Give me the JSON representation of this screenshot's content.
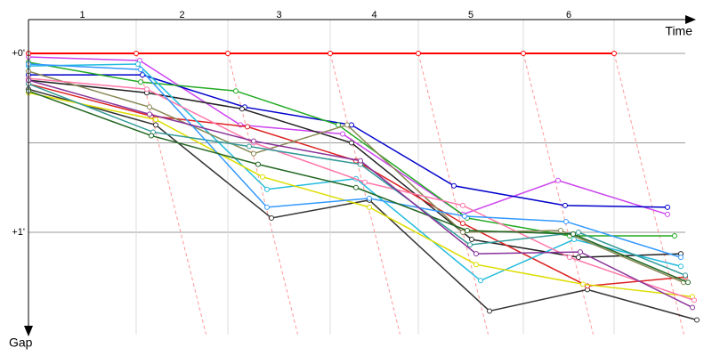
{
  "chart_data": {
    "type": "line",
    "x_label": "Time",
    "y_label": "Gap",
    "categories": [
      "1",
      "2",
      "3",
      "4",
      "5",
      "6"
    ],
    "lap_times": [
      2.42,
      4.48,
      6.78,
      8.76,
      11.12,
      13.16
    ],
    "xlim": [
      0,
      15.3
    ],
    "ylim": [
      0,
      1.57
    ],
    "yticks": [
      {
        "value": 0,
        "label": "+0'"
      },
      {
        "value": 0.5,
        "label": null
      },
      {
        "value": 1,
        "label": "+1'"
      }
    ],
    "grid": true,
    "series": [
      {
        "color": "#cc44ee",
        "x": [
          0,
          2.5,
          4.76,
          7.06,
          9.76,
          11.9,
          14.36
        ],
        "values": [
          0.02,
          0.04,
          0.4,
          0.45,
          0.9,
          0.71,
          0.9
        ]
      },
      {
        "color": "#0000cc",
        "x": [
          0,
          2.56,
          4.86,
          7.26,
          9.56,
          12.06,
          14.36
        ],
        "values": [
          0.12,
          0.12,
          0.3,
          0.4,
          0.74,
          0.85,
          0.86
        ]
      },
      {
        "color": "#222222",
        "x": [
          0,
          2.66,
          4.8,
          7.26,
          9.96,
          12.36,
          14.66
        ],
        "values": [
          0.15,
          0.22,
          0.31,
          0.5,
          1.04,
          1.14,
          1.12
        ]
      },
      {
        "color": "#333333",
        "x": [
          0,
          2.86,
          5.46,
          7.66,
          10.36,
          12.56,
          15.02
        ],
        "values": [
          0.2,
          0.4,
          0.92,
          0.82,
          1.44,
          1.32,
          1.49
        ]
      },
      {
        "color": "#dd2222",
        "x": [
          0,
          2.76,
          4.92,
          7.36,
          9.76,
          12.56,
          14.76
        ],
        "values": [
          0.17,
          0.35,
          0.41,
          0.6,
          0.95,
          1.3,
          1.25
        ]
      },
      {
        "color": "#22aa22",
        "x": [
          0,
          2.52,
          4.66,
          6.96,
          9.86,
          12.16,
          14.52
        ],
        "values": [
          0.05,
          0.16,
          0.21,
          0.4,
          0.92,
          1.02,
          1.02
        ]
      },
      {
        "color": "#22bbdd",
        "x": [
          0,
          2.46,
          5.36,
          7.36,
          10.16,
          12.26,
          14.66
        ],
        "values": [
          0.07,
          0.06,
          0.76,
          0.7,
          1.27,
          1.04,
          1.19
        ]
      },
      {
        "color": "#dddd00",
        "x": [
          0,
          2.86,
          5.26,
          7.66,
          10.06,
          12.46,
          14.92
        ],
        "values": [
          0.22,
          0.37,
          0.69,
          0.86,
          1.18,
          1.29,
          1.36
        ]
      },
      {
        "color": "#888855",
        "x": [
          0,
          2.72,
          5.06,
          7.16,
          9.76,
          11.96,
          14.72
        ],
        "values": [
          0.1,
          0.3,
          0.56,
          0.4,
          1.0,
          0.99,
          1.28
        ]
      },
      {
        "color": "#ff77aa",
        "x": [
          0,
          2.66,
          5.06,
          7.56,
          9.76,
          12.16,
          14.96
        ],
        "values": [
          0.14,
          0.2,
          0.5,
          0.72,
          0.85,
          1.14,
          1.38
        ]
      },
      {
        "color": "#339999",
        "x": [
          0,
          2.8,
          4.96,
          7.46,
          9.92,
          12.36,
          14.76
        ],
        "values": [
          0.17,
          0.44,
          0.52,
          0.62,
          1.07,
          1.0,
          1.24
        ]
      },
      {
        "color": "#3399ff",
        "x": [
          0,
          2.52,
          5.36,
          7.66,
          9.8,
          12.08,
          14.66
        ],
        "values": [
          0.06,
          0.09,
          0.86,
          0.81,
          0.91,
          0.94,
          1.14
        ]
      },
      {
        "color": "#226622",
        "x": [
          0,
          2.76,
          5.16,
          7.36,
          9.86,
          12.24,
          14.82
        ],
        "values": [
          0.21,
          0.46,
          0.62,
          0.75,
          0.99,
          1.01,
          1.28
        ]
      },
      {
        "color": "#883399",
        "x": [
          0,
          2.72,
          5.06,
          7.46,
          10.06,
          12.4,
          14.92
        ],
        "values": [
          0.15,
          0.34,
          0.49,
          0.6,
          1.12,
          1.11,
          1.42
        ]
      },
      {
        "color": "#ff0000",
        "x": [
          0,
          2.42,
          4.48,
          6.78,
          8.76,
          11.12,
          13.16
        ],
        "values": [
          0,
          0,
          0,
          0,
          0,
          0,
          0
        ]
      }
    ]
  }
}
